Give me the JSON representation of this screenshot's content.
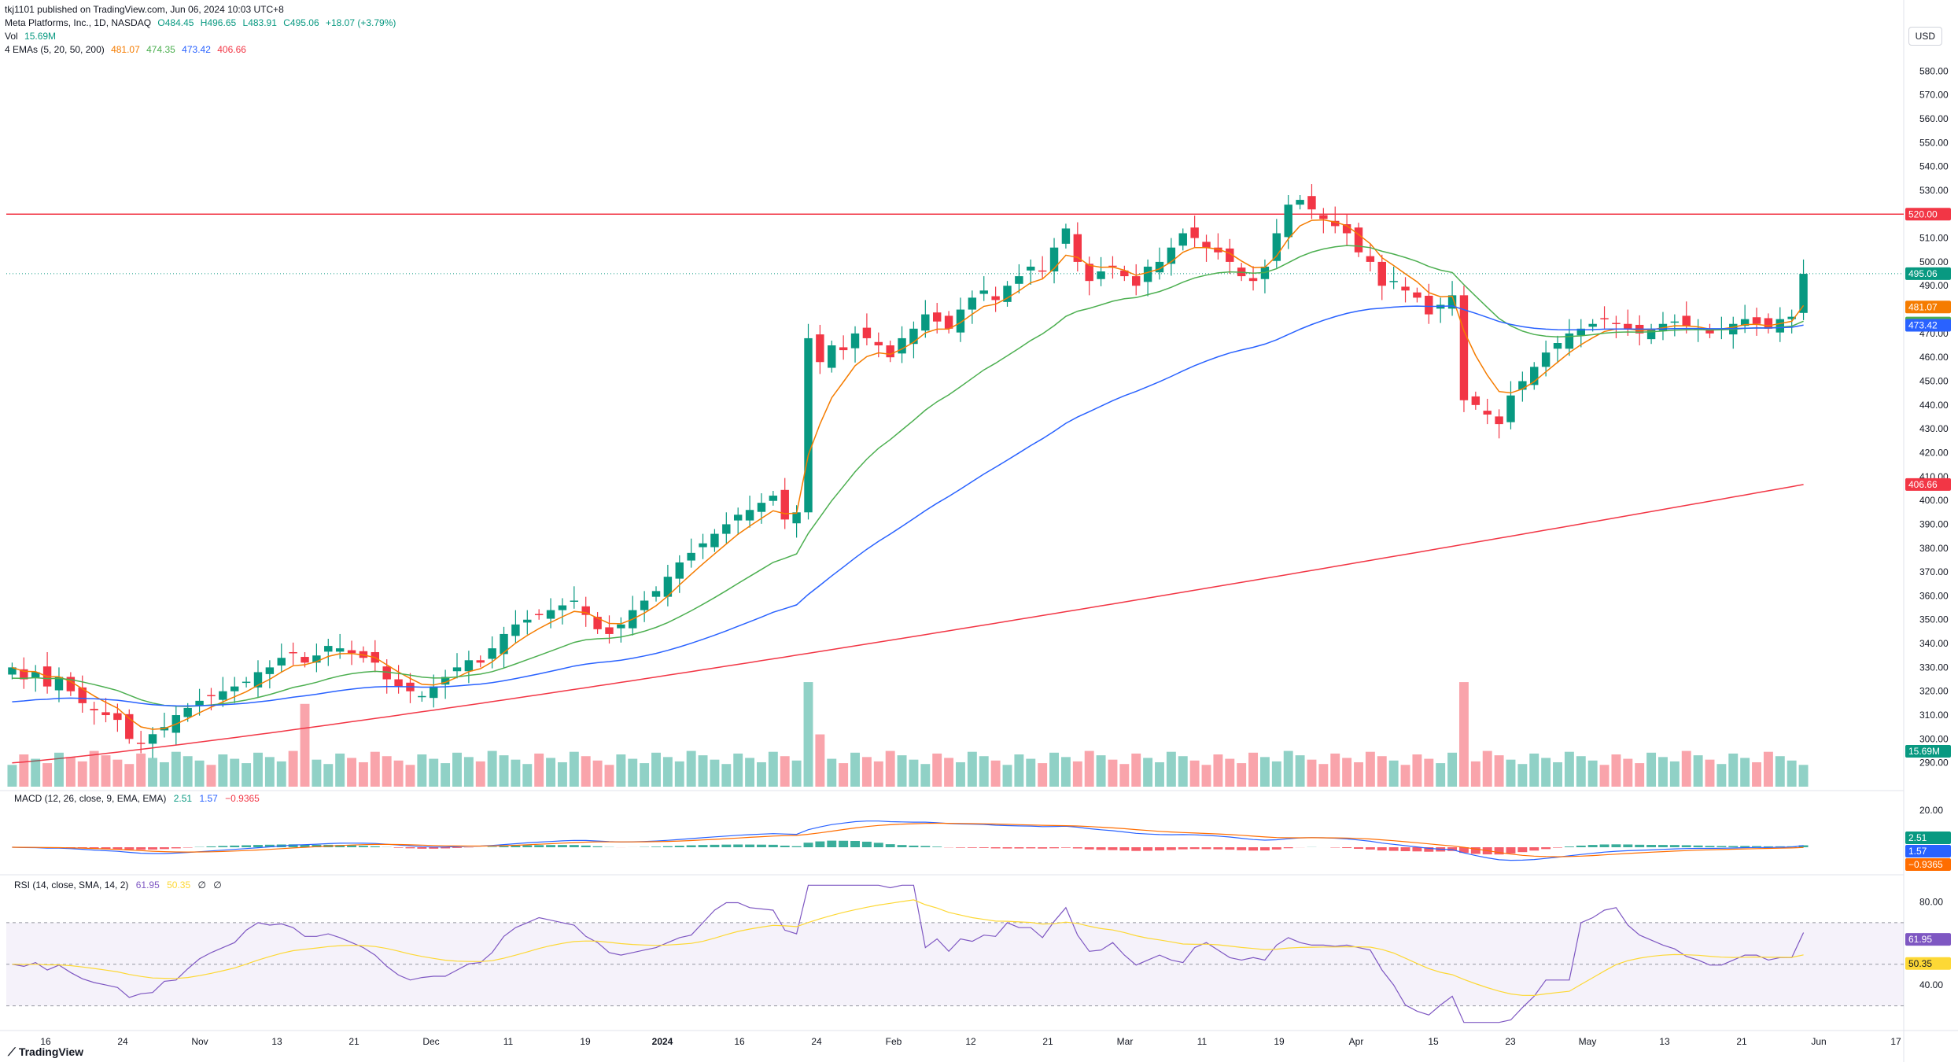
{
  "header": {
    "publish_line": "tkj1101 published on TradingView.com, Jun 06, 2024 10:03 UTC+8",
    "symbol": "Meta Platforms, Inc., 1D, NASDAQ",
    "ohlc": {
      "o": "O484.45",
      "h": "H496.65",
      "l": "L483.91",
      "c": "C495.06",
      "chg": "+18.07 (+3.79%)"
    },
    "vol_label": "Vol",
    "vol_value": "15.69M",
    "ema_label": "4 EMAs (5, 20, 50, 200)",
    "ema_values": [
      "481.07",
      "474.35",
      "473.42",
      "406.66"
    ],
    "macd_label": "MACD (12, 26, close, 9, EMA, EMA)",
    "macd_values": [
      "2.51",
      "1.57",
      "−0.9365"
    ],
    "rsi_label": "RSI (14, close, SMA, 14, 2)",
    "rsi_values": [
      "61.95",
      "50.35",
      "∅",
      "∅"
    ]
  },
  "currency": "USD",
  "brand": "TradingView",
  "colors": {
    "up": "#089981",
    "down": "#f23645",
    "ema5": "#f57c00",
    "ema20": "#4caf50",
    "ema50": "#2962ff",
    "ema200": "#f23645",
    "macd": "#2962ff",
    "signal": "#ff6d00",
    "rsi": "#7e57c2",
    "rsi_ma": "#fdd835",
    "resistance": "#f23645"
  },
  "chart_data": {
    "type": "candlestick",
    "title": "Meta Platforms, Inc., 1D, NASDAQ",
    "y_axis": {
      "min": 280,
      "max": 590,
      "ticks": [
        580,
        570,
        560,
        550,
        540,
        530,
        520,
        510,
        500,
        490,
        480,
        470,
        460,
        450,
        440,
        430,
        420,
        410,
        400,
        390,
        380,
        370,
        360,
        350,
        340,
        330,
        320,
        310,
        300,
        290
      ]
    },
    "x_ticks": [
      "16",
      "24",
      "Nov",
      "13",
      "21",
      "Dec",
      "11",
      "19",
      "2024",
      "16",
      "24",
      "Feb",
      "12",
      "21",
      "Mar",
      "11",
      "19",
      "Apr",
      "15",
      "23",
      "May",
      "13",
      "21",
      "Jun",
      "17"
    ],
    "resistance_line": 520,
    "price_labels": [
      {
        "text": "520.00",
        "value": 520,
        "color": "#f23645"
      },
      {
        "text": "495.06",
        "value": 495.06,
        "color": "#089981"
      },
      {
        "text": "481.07",
        "value": 481.07,
        "color": "#f57c00"
      },
      {
        "text": "474.35",
        "value": 474.35,
        "color": "#4caf50"
      },
      {
        "text": "473.42",
        "value": 473.42,
        "color": "#2962ff"
      },
      {
        "text": "406.66",
        "value": 406.66,
        "color": "#f23645"
      },
      {
        "text": "15.69M",
        "value": 15.69,
        "color": "#089981",
        "pane": "volume"
      }
    ],
    "closes": [
      330,
      325,
      328,
      322,
      326,
      320,
      315,
      312,
      310,
      308,
      300,
      298,
      302,
      305,
      310,
      313,
      316,
      318,
      320,
      322,
      324,
      328,
      330,
      334,
      336,
      332,
      335,
      339,
      338,
      336,
      334,
      332,
      325,
      322,
      320,
      318,
      322,
      326,
      330,
      333,
      332,
      338,
      344,
      348,
      350,
      352,
      354,
      356,
      358,
      352,
      346,
      344,
      348,
      354,
      358,
      362,
      368,
      374,
      378,
      382,
      386,
      390,
      394,
      396,
      399,
      402,
      392,
      395,
      468,
      458,
      465,
      463,
      470,
      468,
      465,
      460,
      468,
      472,
      478,
      475,
      472,
      480,
      485,
      488,
      484,
      490,
      494,
      498,
      496,
      506,
      514,
      500,
      492,
      496,
      498,
      494,
      490,
      498,
      500,
      506,
      512,
      510,
      506,
      504,
      500,
      494,
      492,
      498,
      512,
      524,
      526,
      522,
      518,
      515,
      512,
      504,
      500,
      490,
      492,
      488,
      485,
      478,
      482,
      486,
      442,
      440,
      436,
      432,
      444,
      450,
      456,
      462,
      466,
      470,
      472,
      474,
      476,
      474,
      472,
      470,
      472,
      474,
      475,
      473,
      472,
      470,
      472,
      474,
      476,
      474,
      472,
      476,
      477,
      495
    ]
  }
}
